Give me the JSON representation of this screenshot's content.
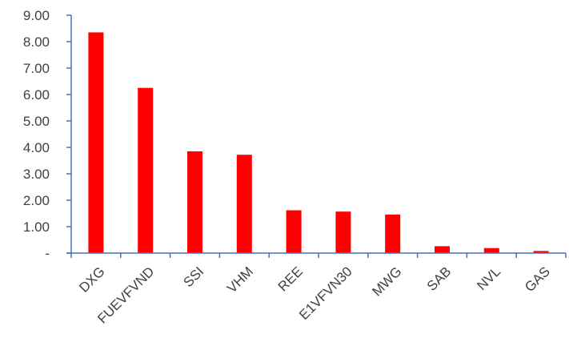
{
  "chart_data": {
    "type": "bar",
    "title": "",
    "xlabel": "",
    "ylabel": "",
    "categories": [
      "DXG",
      "FUEVFVND",
      "SSI",
      "VHM",
      "REE",
      "E1VFVN30",
      "MWG",
      "SAB",
      "NVL",
      "GAS"
    ],
    "values": [
      8.35,
      6.25,
      3.85,
      3.72,
      1.62,
      1.57,
      1.46,
      0.26,
      0.19,
      0.08
    ],
    "ylim": [
      0,
      9
    ],
    "yticks": [
      {
        "value": 0,
        "label": "-"
      },
      {
        "value": 1,
        "label": "1.00"
      },
      {
        "value": 2,
        "label": "2.00"
      },
      {
        "value": 3,
        "label": "3.00"
      },
      {
        "value": 4,
        "label": "4.00"
      },
      {
        "value": 5,
        "label": "5.00"
      },
      {
        "value": 6,
        "label": "6.00"
      },
      {
        "value": 7,
        "label": "7.00"
      },
      {
        "value": 8,
        "label": "8.00"
      },
      {
        "value": 9,
        "label": "9.00"
      }
    ],
    "grid": false,
    "bar_color": "#ff0000",
    "axis_color": "#4472c4"
  }
}
